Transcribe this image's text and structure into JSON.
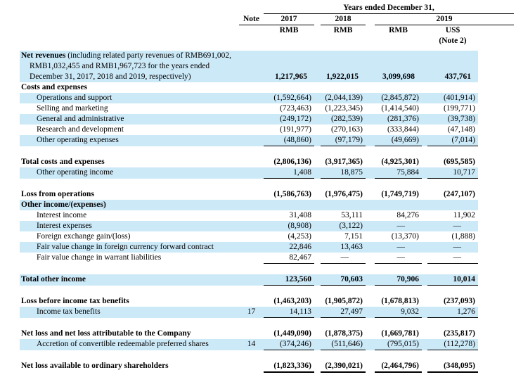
{
  "header": {
    "years_ended": "Years ended December 31,",
    "note_label": "Note",
    "year_2017": "2017",
    "year_2018": "2018",
    "year_2019": "2019",
    "currency_2017": "RMB",
    "currency_2018": "RMB",
    "currency_2019_rmb": "RMB",
    "currency_2019_usd": "US$",
    "note2": "(Note 2)"
  },
  "colors": {
    "highlight": "#cce9f8",
    "text": "#000000",
    "background": "#ffffff"
  },
  "rows": [
    {
      "label_bold": "Net revenues",
      "label_rest": " (including related party revenues of RMB691,002, RMB1,032,455 and RMB1,967,723 for the years ended December 31, 2017, 2018 and 2019, respectively)",
      "note": "",
      "bg": "blue",
      "multiline": true,
      "values_bold": true,
      "values": [
        "1,217,965",
        "1,922,015",
        "3,099,698",
        "437,761"
      ]
    },
    {
      "label": "Costs and expenses",
      "note": "",
      "bold": true,
      "values": [
        "",
        "",
        "",
        ""
      ]
    },
    {
      "label": "Operations and support",
      "note": "",
      "indent": 1,
      "bg": "blue",
      "values": [
        "(1,592,664)",
        "(2,044,139)",
        "(2,845,872)",
        "(401,914)"
      ]
    },
    {
      "label": "Selling and marketing",
      "note": "",
      "indent": 1,
      "values": [
        "(723,463)",
        "(1,223,345)",
        "(1,414,540)",
        "(199,771)"
      ]
    },
    {
      "label": "General and administrative",
      "note": "",
      "indent": 1,
      "bg": "blue",
      "values": [
        "(249,172)",
        "(282,539)",
        "(281,376)",
        "(39,738)"
      ]
    },
    {
      "label": "Research and development",
      "note": "",
      "indent": 1,
      "values": [
        "(191,977)",
        "(270,163)",
        "(333,844)",
        "(47,148)"
      ]
    },
    {
      "label": "Other operating expenses",
      "note": "",
      "indent": 1,
      "bg": "blue",
      "rule": "single",
      "values": [
        "(48,860)",
        "(97,179)",
        "(49,669)",
        "(7,014)"
      ]
    },
    {
      "label": "Total costs and expenses",
      "note": "",
      "bold": true,
      "gap": true,
      "values": [
        "(2,806,136)",
        "(3,917,365)",
        "(4,925,301)",
        "(695,585)"
      ]
    },
    {
      "label": "Other operating income",
      "note": "",
      "indent": 1,
      "bg": "blue",
      "rule": "single",
      "values": [
        "1,408",
        "18,875",
        "75,884",
        "10,717"
      ]
    },
    {
      "label": "Loss from operations",
      "note": "",
      "bold": true,
      "gap": true,
      "values": [
        "(1,586,763)",
        "(1,976,475)",
        "(1,749,719)",
        "(247,107)"
      ]
    },
    {
      "label": "Other income/(expenses)",
      "note": "",
      "bold": true,
      "bg": "blue",
      "values": [
        "",
        "",
        "",
        ""
      ]
    },
    {
      "label": "Interest income",
      "note": "",
      "indent": 1,
      "values": [
        "31,408",
        "53,111",
        "84,276",
        "11,902"
      ]
    },
    {
      "label": "Interest expenses",
      "note": "",
      "indent": 1,
      "bg": "blue",
      "values": [
        "(8,908)",
        "(3,122)",
        "—",
        "—"
      ]
    },
    {
      "label": "Foreign exchange gain/(loss)",
      "note": "",
      "indent": 1,
      "values": [
        "(4,253)",
        "7,151",
        "(13,370)",
        "(1,888)"
      ]
    },
    {
      "label": "Fair value change in foreign currency forward contract",
      "note": "",
      "indent": 1,
      "bg": "blue",
      "values": [
        "22,846",
        "13,463",
        "—",
        "—"
      ]
    },
    {
      "label": "Fair value change in warrant liabilities",
      "note": "",
      "indent": 1,
      "rule": "single",
      "values": [
        "82,467",
        "—",
        "—",
        "—"
      ]
    },
    {
      "label": "Total other income",
      "note": "",
      "bold": true,
      "bg": "blue",
      "rule": "single",
      "gap": true,
      "values": [
        "123,560",
        "70,603",
        "70,906",
        "10,014"
      ]
    },
    {
      "label": "Loss before income tax benefits",
      "note": "",
      "bold": true,
      "gap": true,
      "values": [
        "(1,463,203)",
        "(1,905,872)",
        "(1,678,813)",
        "(237,093)"
      ]
    },
    {
      "label": "Income tax benefits",
      "note": "17",
      "indent": 1,
      "bg": "blue",
      "rule": "single",
      "values": [
        "14,113",
        "27,497",
        "9,032",
        "1,276"
      ]
    },
    {
      "label": "Net loss and net loss attributable to the Company",
      "note": "",
      "bold": true,
      "gap": true,
      "values": [
        "(1,449,090)",
        "(1,878,375)",
        "(1,669,781)",
        "(235,817)"
      ]
    },
    {
      "label": "Accretion of convertible redeemable preferred shares",
      "note": "14",
      "indent": 1,
      "bg": "blue",
      "rule": "single",
      "values": [
        "(374,246)",
        "(511,646)",
        "(795,015)",
        "(112,278)"
      ]
    },
    {
      "label": "Net loss available to ordinary shareholders",
      "note": "",
      "bold": true,
      "rule": "thick",
      "gap": true,
      "values": [
        "(1,823,336)",
        "(2,390,021)",
        "(2,464,796)",
        "(348,095)"
      ]
    }
  ]
}
